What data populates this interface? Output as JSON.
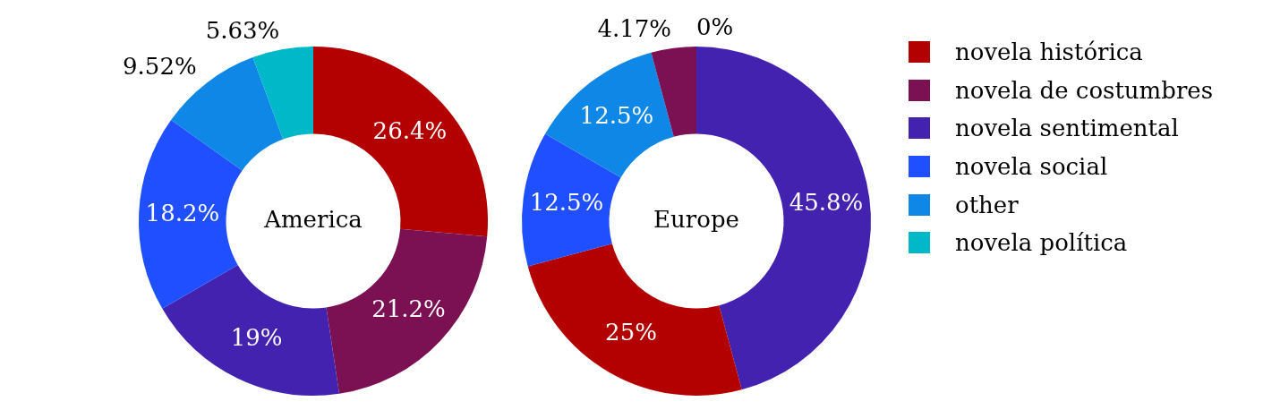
{
  "chart_data": [
    {
      "type": "doughnut",
      "title": "America",
      "categories": [
        "novela histórica",
        "novela de costumbres",
        "novela sentimental",
        "novela social",
        "other",
        "novela política"
      ],
      "values": [
        26.4,
        21.2,
        19,
        18.2,
        9.52,
        5.63
      ],
      "value_labels": [
        "26.4%",
        "21.2%",
        "19%",
        "18.2%",
        "9.52%",
        "5.63%"
      ],
      "colors": [
        "#b30000",
        "#7b1052",
        "#4422b0",
        "#1f4fff",
        "#0f87e6",
        "#00b8c8"
      ],
      "data_labels": true,
      "legend": "right"
    },
    {
      "type": "doughnut",
      "title": "Europe",
      "categories": [
        "novela sentimental",
        "novela histórica",
        "novela social",
        "other",
        "novela de costumbres",
        "novela política"
      ],
      "values": [
        45.8,
        25,
        12.5,
        12.5,
        4.17,
        0
      ],
      "value_labels": [
        "45.8%",
        "25%",
        "12.5%",
        "12.5%",
        "4.17%",
        "0%"
      ],
      "colors": [
        "#4422b0",
        "#b30000",
        "#1f4fff",
        "#0f87e6",
        "#7b1052",
        "#00b8c8"
      ],
      "data_labels": true
    }
  ]
}
